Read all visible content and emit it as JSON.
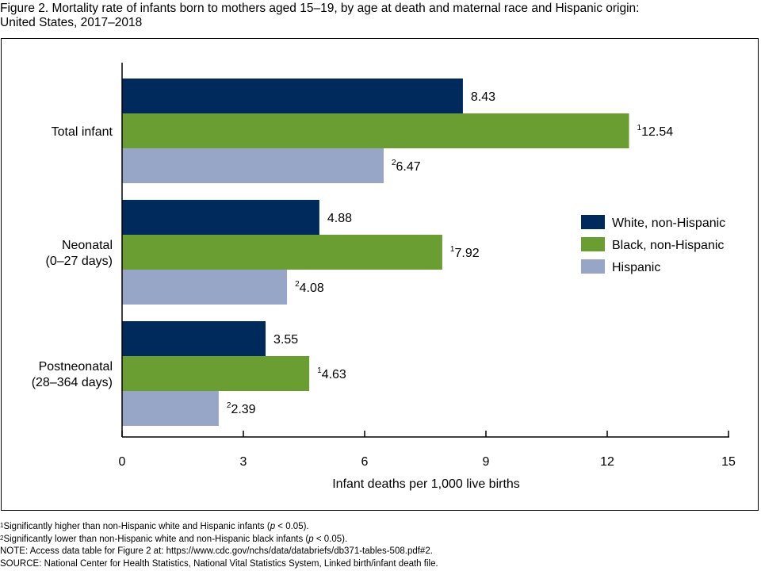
{
  "title_line1": "Figure 2. Mortality rate of infants born to mothers aged 15–19, by age at death and maternal race and Hispanic origin:",
  "title_line2": "United States, 2017–2018",
  "chart_data": {
    "type": "bar",
    "orientation": "horizontal",
    "categories": [
      [
        "Total infant"
      ],
      [
        "Neonatal",
        "(0–27 days)"
      ],
      [
        "Postneonatal",
        "(28–364 days)"
      ]
    ],
    "series": [
      {
        "name": "White, non-Hispanic",
        "color": "#002a5c",
        "values": [
          8.43,
          4.88,
          3.55
        ],
        "labels": [
          "8.43",
          "4.88",
          "3.55"
        ],
        "sup": [
          "",
          "",
          ""
        ]
      },
      {
        "name": "Black, non-Hispanic",
        "color": "#6a9e32",
        "values": [
          12.54,
          7.92,
          4.63
        ],
        "labels": [
          "12.54",
          "7.92",
          "4.63"
        ],
        "sup": [
          "1",
          "1",
          "1"
        ]
      },
      {
        "name": "Hispanic",
        "color": "#97a6c6",
        "values": [
          6.47,
          4.08,
          2.39
        ],
        "labels": [
          "6.47",
          "4.08",
          "2.39"
        ],
        "sup": [
          "2",
          "2",
          "2"
        ]
      }
    ],
    "xlim": [
      0,
      15
    ],
    "xticks": [
      0,
      3,
      6,
      9,
      12,
      15
    ],
    "xlabel": "Infant deaths per 1,000 live births",
    "legend_position": "right"
  },
  "footnotes": {
    "fn1_mark": "1",
    "fn1_a": "Significantly higher than non-Hispanic white and Hispanic infants (",
    "fn1_p": "p",
    "fn1_b": " < 0.05).",
    "fn2_mark": "2",
    "fn2_a": "Significantly lower than non-Hispanic white and non-Hispanic black infants (",
    "fn2_p": "p",
    "fn2_b": " < 0.05).",
    "note": "NOTE: Access data table for Figure 2 at: https://www.cdc.gov/nchs/data/databriefs/db371-tables-508.pdf#2.",
    "source": "SOURCE: National Center for Health Statistics, National Vital Statistics System, Linked birth/infant death file."
  }
}
